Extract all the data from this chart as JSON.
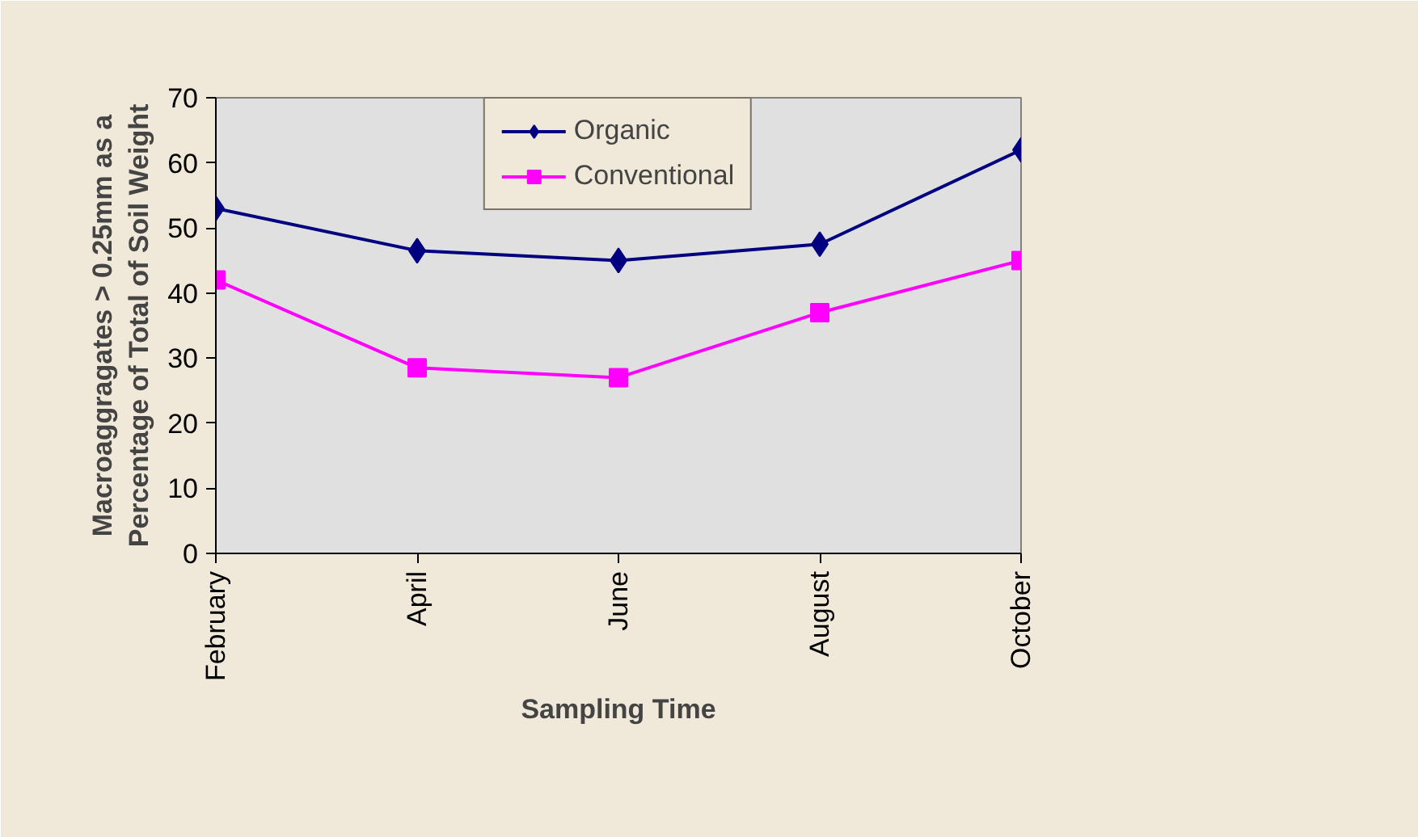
{
  "chart_data": {
    "type": "line",
    "xlabel": "Sampling Time",
    "ylabel": "Macroaggragates > 0.25mm as a\nPercentage of Total of Soil Weight",
    "categories": [
      "February",
      "April",
      "June",
      "August",
      "October"
    ],
    "series": [
      {
        "name": "Organic",
        "color": "#000080",
        "marker": "diamond",
        "values": [
          53,
          46.5,
          45,
          47.5,
          62
        ]
      },
      {
        "name": "Conventional",
        "color": "#ff00ff",
        "marker": "square",
        "values": [
          42,
          28.5,
          27,
          37,
          45
        ]
      }
    ],
    "ylim": [
      0,
      70
    ],
    "yticks": [
      0,
      10,
      20,
      30,
      40,
      50,
      60,
      70
    ],
    "grid": false,
    "legend": "top"
  }
}
